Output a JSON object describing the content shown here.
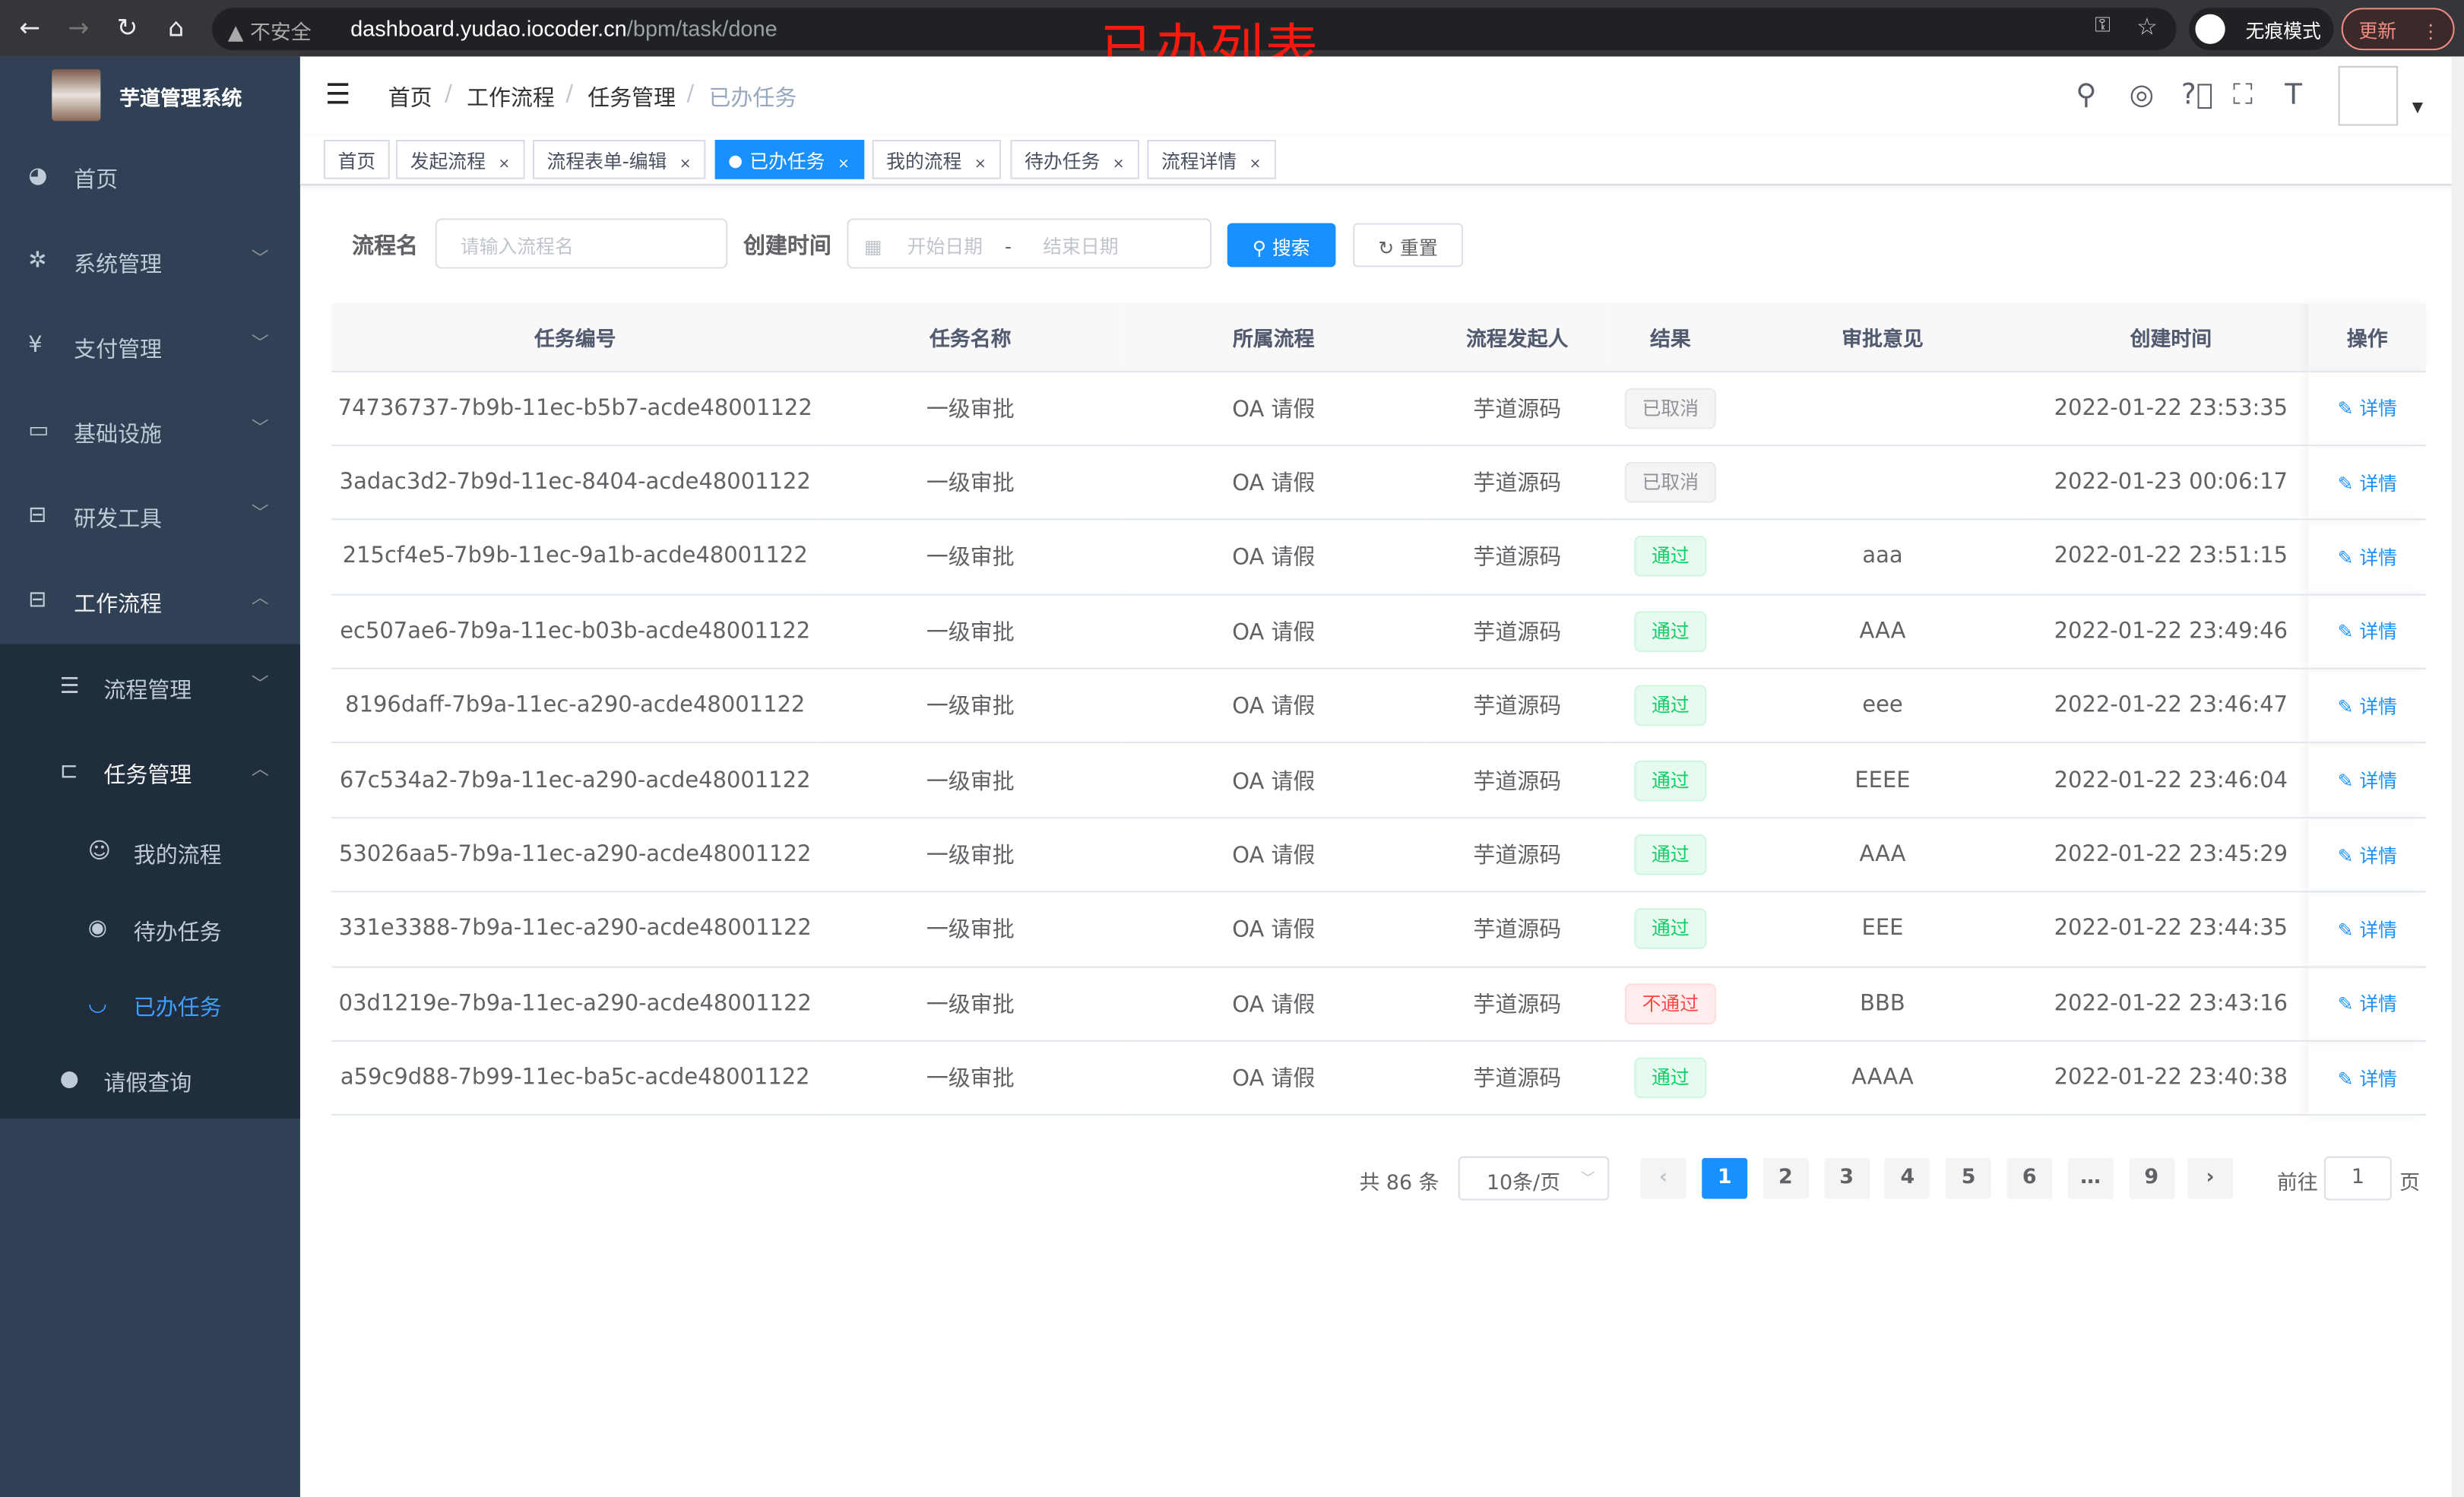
{
  "browser": {
    "url_host": "dashboard.yudao.iocoder.cn",
    "url_path": "/bpm/task/done",
    "security": "不安全",
    "incognito": "无痕模式",
    "update": "更新"
  },
  "overlay_title": "已办列表",
  "app": {
    "title": "芋道管理系统"
  },
  "sidebar": {
    "items": [
      {
        "label": "首页",
        "icon": "dashboard-icon"
      },
      {
        "label": "系统管理",
        "icon": "gear-icon"
      },
      {
        "label": "支付管理",
        "icon": "yen-icon"
      },
      {
        "label": "基础设施",
        "icon": "monitor-icon"
      },
      {
        "label": "研发工具",
        "icon": "toolbox-icon"
      },
      {
        "label": "工作流程",
        "icon": "toolbox-icon"
      },
      {
        "label": "流程管理",
        "icon": "list-icon"
      },
      {
        "label": "任务管理",
        "icon": "tree-icon"
      },
      {
        "label": "我的流程",
        "icon": "people-icon"
      },
      {
        "label": "待办任务",
        "icon": "eye-icon"
      },
      {
        "label": "已办任务",
        "icon": "eye-closed-icon"
      },
      {
        "label": "请假查询",
        "icon": "user-icon"
      }
    ]
  },
  "breadcrumb": [
    "首页",
    "工作流程",
    "任务管理",
    "已办任务"
  ],
  "tags": [
    "首页",
    "发起流程",
    "流程表单-编辑",
    "已办任务",
    "我的流程",
    "待办任务",
    "流程详情"
  ],
  "search": {
    "name_label": "流程名",
    "name_placeholder": "请输入流程名",
    "time_label": "创建时间",
    "start_placeholder": "开始日期",
    "range_sep": "-",
    "end_placeholder": "结束日期",
    "search_btn": "搜索",
    "reset_btn": "重置"
  },
  "table": {
    "headers": [
      "任务编号",
      "任务名称",
      "所属流程",
      "流程发起人",
      "结果",
      "审批意见",
      "创建时间",
      "操作"
    ],
    "rows": [
      [
        "74736737-7b9b-11ec-b5b7-acde48001122",
        "一级审批",
        "OA 请假",
        "芋道源码",
        "已取消",
        "",
        "2022-01-22 23:53:35",
        "详情"
      ],
      [
        "3adac3d2-7b9d-11ec-8404-acde48001122",
        "一级审批",
        "OA 请假",
        "芋道源码",
        "已取消",
        "",
        "2022-01-23 00:06:17",
        "详情"
      ],
      [
        "215cf4e5-7b9b-11ec-9a1b-acde48001122",
        "一级审批",
        "OA 请假",
        "芋道源码",
        "通过",
        "aaa",
        "2022-01-22 23:51:15",
        "详情"
      ],
      [
        "ec507ae6-7b9a-11ec-b03b-acde48001122",
        "一级审批",
        "OA 请假",
        "芋道源码",
        "通过",
        "AAA",
        "2022-01-22 23:49:46",
        "详情"
      ],
      [
        "8196daff-7b9a-11ec-a290-acde48001122",
        "一级审批",
        "OA 请假",
        "芋道源码",
        "通过",
        "eee",
        "2022-01-22 23:46:47",
        "详情"
      ],
      [
        "67c534a2-7b9a-11ec-a290-acde48001122",
        "一级审批",
        "OA 请假",
        "芋道源码",
        "通过",
        "EEEE",
        "2022-01-22 23:46:04",
        "详情"
      ],
      [
        "53026aa5-7b9a-11ec-a290-acde48001122",
        "一级审批",
        "OA 请假",
        "芋道源码",
        "通过",
        "AAA",
        "2022-01-22 23:45:29",
        "详情"
      ],
      [
        "331e3388-7b9a-11ec-a290-acde48001122",
        "一级审批",
        "OA 请假",
        "芋道源码",
        "通过",
        "EEE",
        "2022-01-22 23:44:35",
        "详情"
      ],
      [
        "03d1219e-7b9a-11ec-a290-acde48001122",
        "一级审批",
        "OA 请假",
        "芋道源码",
        "不通过",
        "BBB",
        "2022-01-22 23:43:16",
        "详情"
      ],
      [
        "a59c9d88-7b99-11ec-ba5c-acde48001122",
        "一级审批",
        "OA 请假",
        "芋道源码",
        "通过",
        "AAAA",
        "2022-01-22 23:40:38",
        "详情"
      ]
    ]
  },
  "pagination": {
    "total": "共 86 条",
    "page_size": "10条/页",
    "pages": [
      "1",
      "2",
      "3",
      "4",
      "5",
      "6",
      "…",
      "9"
    ],
    "current": "1",
    "goto_label": "前往",
    "goto_value": "1",
    "goto_suffix": "页"
  }
}
